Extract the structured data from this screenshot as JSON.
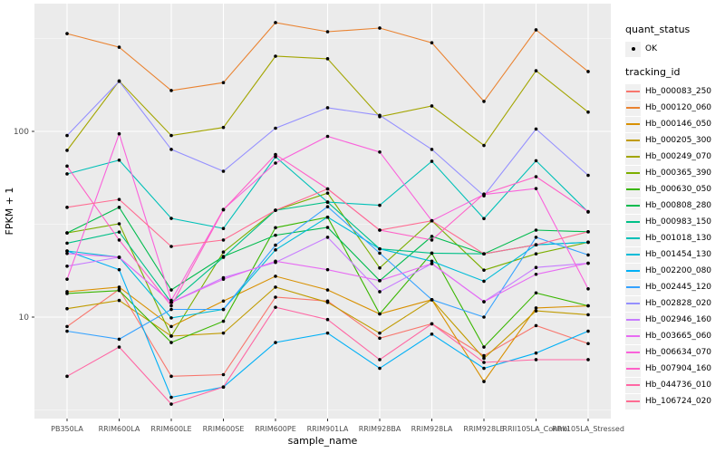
{
  "axes": {
    "x_title": "sample_name",
    "y_title": "FPKM + 1",
    "y_tick_labels": [
      "100",
      "10"
    ]
  },
  "legend": {
    "quant_status_title": "quant_status",
    "ok_label": "OK",
    "tracking_title": "tracking_id"
  },
  "colors": {
    "panel_background": "#EBEBEB",
    "grid_major": "#FFFFFF",
    "grid_minor": "#F7F7F7",
    "tick_label": "#4D4D4D",
    "axis_title": "#000000",
    "point": "#000000",
    "legend_key_background": "#F0F0F0"
  },
  "chart_data": {
    "type": "line",
    "title": "",
    "xlabel": "sample_name",
    "ylabel": "FPKM + 1",
    "y_scale": "log10",
    "y_ticks": [
      10,
      100
    ],
    "y_minor_ticks": [
      3.162,
      31.62,
      316.2
    ],
    "ylim": [
      2.6,
      480
    ],
    "grid": true,
    "legend_position": "right",
    "point_marker": "black dot",
    "categories": [
      "PB350LA",
      "RRIM600LA",
      "RRIM600LE",
      "RRIM600SE",
      "RRIM600PE",
      "RRIM901LA",
      "RRIM928BA",
      "RRIM928LA",
      "RRIM928LE",
      "RRII105LA_Control",
      "RRII105LA_Stressed"
    ],
    "series": [
      {
        "name": "Hb_000083_250",
        "color": "#F8766D",
        "values": [
          8.9,
          14.1,
          4.8,
          4.9,
          12.8,
          12.2,
          7.7,
          9.2,
          6.2,
          9.0,
          7.2
        ]
      },
      {
        "name": "Hb_000120_060",
        "color": "#EA8331",
        "values": [
          336,
          284,
          166,
          183,
          385,
          344,
          360,
          300,
          145,
          352,
          210
        ]
      },
      {
        "name": "Hb_000146_050",
        "color": "#D89000",
        "values": [
          13.7,
          14.5,
          8.9,
          12.2,
          16.6,
          14.0,
          10.4,
          12.4,
          4.5,
          11.2,
          11.5
        ]
      },
      {
        "name": "Hb_000205_300",
        "color": "#C09B00",
        "values": [
          11.1,
          12.3,
          7.9,
          8.2,
          14.5,
          12.0,
          8.2,
          12.4,
          6.0,
          10.8,
          10.3
        ]
      },
      {
        "name": "Hb_000249_070",
        "color": "#A3A500",
        "values": [
          79,
          187,
          95,
          105,
          254,
          246,
          120,
          137,
          84,
          212,
          127
        ]
      },
      {
        "name": "Hb_000365_390",
        "color": "#7CAE00",
        "values": [
          28.4,
          31.8,
          7.9,
          22.4,
          37.6,
          46.5,
          18.4,
          33.0,
          17.9,
          21.9,
          25.3
        ]
      },
      {
        "name": "Hb_000630_050",
        "color": "#39B600",
        "values": [
          13.4,
          13.9,
          7.3,
          9.5,
          30.3,
          34.5,
          10.4,
          22.1,
          6.9,
          13.5,
          11.5
        ]
      },
      {
        "name": "Hb_000808_280",
        "color": "#00BB4E",
        "values": [
          28.4,
          39.0,
          14.0,
          21.2,
          27.6,
          30.4,
          15.7,
          27.2,
          21.9,
          29.4,
          28.8
        ]
      },
      {
        "name": "Hb_000983_150",
        "color": "#00C087",
        "values": [
          25.0,
          28.7,
          12.0,
          21.0,
          37.6,
          41.6,
          23.3,
          22.1,
          21.9,
          24.5,
          25.3
        ]
      },
      {
        "name": "Hb_001018_130",
        "color": "#00C0B8",
        "values": [
          59,
          70,
          34,
          30,
          73,
          41.6,
          40,
          69,
          33.9,
          69.5,
          36.8
        ]
      },
      {
        "name": "Hb_001454_130",
        "color": "#00BCD8",
        "values": [
          22.7,
          21.0,
          9.9,
          11.0,
          23.0,
          34.5,
          23.3,
          20.0,
          15.6,
          24.5,
          25.3
        ]
      },
      {
        "name": "Hb_002200_080",
        "color": "#00B0F6",
        "values": [
          22.7,
          18.0,
          3.7,
          4.2,
          7.3,
          8.2,
          5.3,
          8.1,
          5.3,
          6.4,
          8.4
        ]
      },
      {
        "name": "Hb_002445_120",
        "color": "#35A2FF",
        "values": [
          8.4,
          7.6,
          11.0,
          11.0,
          24.4,
          39.3,
          22.1,
          12.4,
          10.0,
          26.9,
          21.6
        ]
      },
      {
        "name": "Hb_002828_020",
        "color": "#9590FF",
        "values": [
          95,
          186,
          80,
          61,
          104,
          134,
          122,
          80,
          45,
          103,
          58
        ]
      },
      {
        "name": "Hb_002946_160",
        "color": "#C77CFF",
        "values": [
          18.8,
          21.0,
          12.0,
          16.3,
          19.7,
          26.9,
          13.7,
          19.4,
          12.1,
          18.5,
          19.5
        ]
      },
      {
        "name": "Hb_003665_060",
        "color": "#E76BF3",
        "values": [
          22.0,
          21.0,
          12.0,
          16.0,
          20.0,
          18.0,
          15.7,
          19.4,
          12.1,
          17.0,
          19.5
        ]
      },
      {
        "name": "Hb_006634_070",
        "color": "#FA62DB",
        "values": [
          16.0,
          97,
          12.3,
          38,
          67.5,
          94,
          77.4,
          33,
          45.7,
          49.2,
          14.2
        ]
      },
      {
        "name": "Hb_007904_160",
        "color": "#FF61C8",
        "values": [
          65,
          26,
          11.5,
          37.8,
          75,
          49,
          29.4,
          26,
          46,
          57,
          37
        ]
      },
      {
        "name": "Hb_044736_010",
        "color": "#FF67A4",
        "values": [
          4.8,
          6.9,
          3.4,
          4.2,
          11.3,
          9.7,
          5.9,
          9.2,
          5.7,
          5.9,
          5.9
        ]
      },
      {
        "name": "Hb_106724_020",
        "color": "#FF6C92",
        "values": [
          39,
          43,
          24,
          26,
          37.6,
          49,
          29.4,
          33,
          21.9,
          24.5,
          28.8
        ]
      }
    ]
  }
}
